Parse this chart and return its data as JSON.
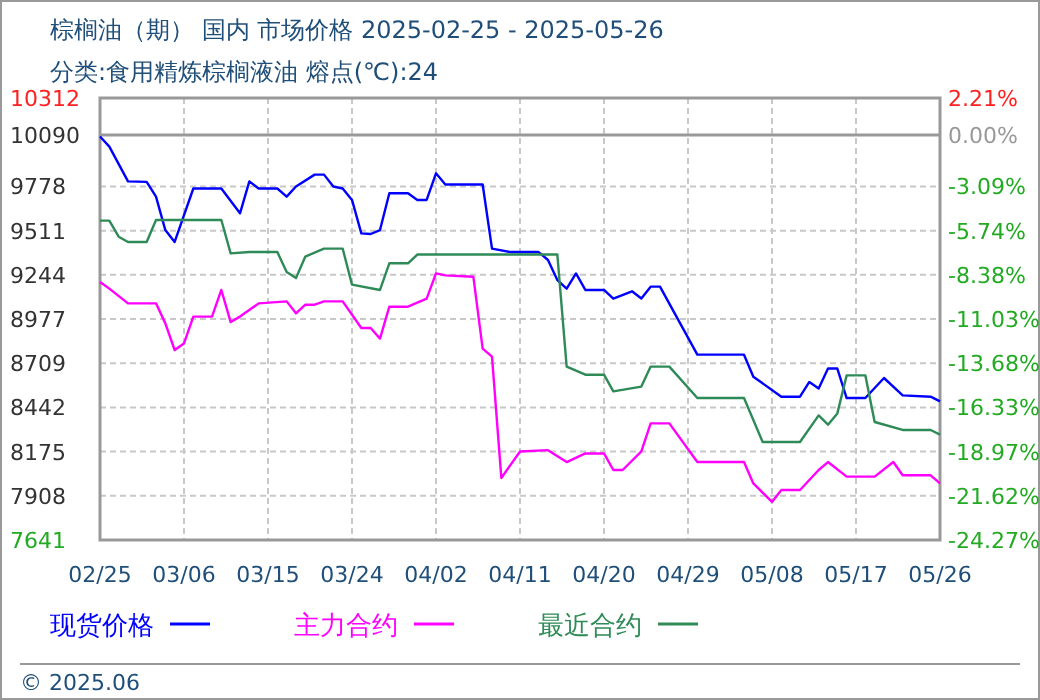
{
  "chart_data": {
    "type": "line",
    "title": "棕榈油（期） 国内 市场价格 2025-02-25 - 2025-05-26",
    "subtitle": "分类:食用精炼棕榈液油 熔点(℃):24",
    "annotations": [
      "© 2025.06"
    ],
    "xlim": [
      "2025-02-25",
      "2025-05-26"
    ],
    "xticks": [
      {
        "value": "2025-02-25",
        "label": "02/25"
      },
      {
        "value": "2025-03-06",
        "label": "03/06"
      },
      {
        "value": "2025-03-15",
        "label": "03/15"
      },
      {
        "value": "2025-03-24",
        "label": "03/24"
      },
      {
        "value": "2025-04-02",
        "label": "04/02"
      },
      {
        "value": "2025-04-11",
        "label": "04/11"
      },
      {
        "value": "2025-04-20",
        "label": "04/20"
      },
      {
        "value": "2025-04-29",
        "label": "04/29"
      },
      {
        "value": "2025-05-08",
        "label": "05/08"
      },
      {
        "value": "2025-05-17",
        "label": "05/17"
      },
      {
        "value": "2025-05-26",
        "label": "05/26"
      }
    ],
    "ylim": [
      7641,
      10312
    ],
    "yticks": [
      10312,
      10090,
      9778,
      9511,
      9244,
      8977,
      8709,
      8442,
      8175,
      7908,
      7641
    ],
    "y2lim": [
      -24.27,
      2.21
    ],
    "y2ticks": [
      {
        "value": 2.21,
        "label": "2.21%"
      },
      {
        "value": 0,
        "label": "0.00%"
      },
      {
        "value": -3.09,
        "label": "-3.09%"
      },
      {
        "value": -5.74,
        "label": "-5.74%"
      },
      {
        "value": -8.38,
        "label": "-8.38%"
      },
      {
        "value": -11.03,
        "label": "-11.03%"
      },
      {
        "value": -13.68,
        "label": "-13.68%"
      },
      {
        "value": -16.33,
        "label": "-16.33%"
      },
      {
        "value": -18.97,
        "label": "-18.97%"
      },
      {
        "value": -21.62,
        "label": "-21.62%"
      },
      {
        "value": -24.27,
        "label": "-24.27%"
      }
    ],
    "grid": true,
    "legend": "bottom",
    "marker": "none",
    "line_style": "solid",
    "series": [
      {
        "name": "现货价格",
        "color": "#0000ff",
        "x": [
          "2025-02-25",
          "2025-02-26",
          "2025-02-28",
          "2025-03-02",
          "2025-03-03",
          "2025-03-04",
          "2025-03-05",
          "2025-03-07",
          "2025-03-10",
          "2025-03-12",
          "2025-03-13",
          "2025-03-14",
          "2025-03-16",
          "2025-03-17",
          "2025-03-18",
          "2025-03-20",
          "2025-03-21",
          "2025-03-22",
          "2025-03-23",
          "2025-03-24",
          "2025-03-25",
          "2025-03-26",
          "2025-03-27",
          "2025-03-28",
          "2025-03-30",
          "2025-03-31",
          "2025-04-01",
          "2025-04-02",
          "2025-04-03",
          "2025-04-07",
          "2025-04-08",
          "2025-04-10",
          "2025-04-13",
          "2025-04-14",
          "2025-04-15",
          "2025-04-16",
          "2025-04-17",
          "2025-04-18",
          "2025-04-20",
          "2025-04-21",
          "2025-04-23",
          "2025-04-24",
          "2025-04-25",
          "2025-04-26",
          "2025-04-30",
          "2025-05-05",
          "2025-05-06",
          "2025-05-09",
          "2025-05-11",
          "2025-05-12",
          "2025-05-13",
          "2025-05-14",
          "2025-05-15",
          "2025-05-16",
          "2025-05-18",
          "2025-05-20",
          "2025-05-22",
          "2025-05-25",
          "2025-05-26"
        ],
        "values": [
          10079,
          10018,
          9808,
          9805,
          9716,
          9514,
          9442,
          9765,
          9765,
          9615,
          9808,
          9765,
          9765,
          9716,
          9777,
          9849,
          9849,
          9777,
          9765,
          9696,
          9494,
          9490,
          9514,
          9736,
          9736,
          9696,
          9696,
          9857,
          9789,
          9789,
          9402,
          9381,
          9381,
          9333,
          9212,
          9160,
          9252,
          9152,
          9152,
          9100,
          9144,
          9100,
          9172,
          9172,
          8761,
          8761,
          8628,
          8507,
          8507,
          8596,
          8556,
          8677,
          8677,
          8499,
          8499,
          8620,
          8515,
          8507,
          8479
        ]
      },
      {
        "name": "主力合约",
        "color": "#ff00ff",
        "x": [
          "2025-02-25",
          "2025-02-26",
          "2025-02-28",
          "2025-03-03",
          "2025-03-04",
          "2025-03-05",
          "2025-03-06",
          "2025-03-07",
          "2025-03-09",
          "2025-03-10",
          "2025-03-11",
          "2025-03-12",
          "2025-03-14",
          "2025-03-17",
          "2025-03-18",
          "2025-03-19",
          "2025-03-20",
          "2025-03-21",
          "2025-03-23",
          "2025-03-25",
          "2025-03-26",
          "2025-03-27",
          "2025-03-28",
          "2025-03-30",
          "2025-04-01",
          "2025-04-02",
          "2025-04-03",
          "2025-04-06",
          "2025-04-07",
          "2025-04-08",
          "2025-04-09",
          "2025-04-11",
          "2025-04-14",
          "2025-04-16",
          "2025-04-18",
          "2025-04-20",
          "2025-04-21",
          "2025-04-22",
          "2025-04-24",
          "2025-04-25",
          "2025-04-27",
          "2025-04-30",
          "2025-05-05",
          "2025-05-06",
          "2025-05-08",
          "2025-05-09",
          "2025-05-11",
          "2025-05-13",
          "2025-05-14",
          "2025-05-16",
          "2025-05-19",
          "2025-05-21",
          "2025-05-22",
          "2025-05-25",
          "2025-05-26"
        ],
        "values": [
          9200,
          9160,
          9071,
          9071,
          8950,
          8789,
          8829,
          8991,
          8991,
          9152,
          8958,
          8991,
          9071,
          9083,
          9011,
          9063,
          9063,
          9083,
          9083,
          8922,
          8922,
          8858,
          9051,
          9051,
          9100,
          9252,
          9240,
          9232,
          8797,
          8749,
          8016,
          8176,
          8184,
          8112,
          8164,
          8164,
          8064,
          8064,
          8176,
          8346,
          8346,
          8112,
          8112,
          7983,
          7871,
          7943,
          7943,
          8064,
          8112,
          8024,
          8024,
          8112,
          8032,
          8032,
          7983
        ]
      },
      {
        "name": "最近合约",
        "color": "#2e8b57",
        "x": [
          "2025-02-25",
          "2025-02-26",
          "2025-02-27",
          "2025-02-28",
          "2025-03-02",
          "2025-03-03",
          "2025-03-10",
          "2025-03-11",
          "2025-03-13",
          "2025-03-16",
          "2025-03-17",
          "2025-03-18",
          "2025-03-19",
          "2025-03-21",
          "2025-03-23",
          "2025-03-24",
          "2025-03-27",
          "2025-03-28",
          "2025-03-30",
          "2025-03-31",
          "2025-04-15",
          "2025-04-16",
          "2025-04-18",
          "2025-04-20",
          "2025-04-21",
          "2025-04-24",
          "2025-04-25",
          "2025-04-27",
          "2025-04-30",
          "2025-05-05",
          "2025-05-07",
          "2025-05-11",
          "2025-05-13",
          "2025-05-14",
          "2025-05-15",
          "2025-05-16",
          "2025-05-18",
          "2025-05-19",
          "2025-05-22",
          "2025-05-25",
          "2025-05-26"
        ],
        "values": [
          9571,
          9571,
          9474,
          9442,
          9442,
          9575,
          9575,
          9373,
          9381,
          9381,
          9261,
          9224,
          9354,
          9402,
          9402,
          9184,
          9152,
          9313,
          9313,
          9366,
          9366,
          8689,
          8640,
          8640,
          8539,
          8568,
          8689,
          8689,
          8499,
          8499,
          8233,
          8233,
          8394,
          8338,
          8406,
          8636,
          8636,
          8354,
          8306,
          8306,
          8278
        ]
      }
    ]
  }
}
